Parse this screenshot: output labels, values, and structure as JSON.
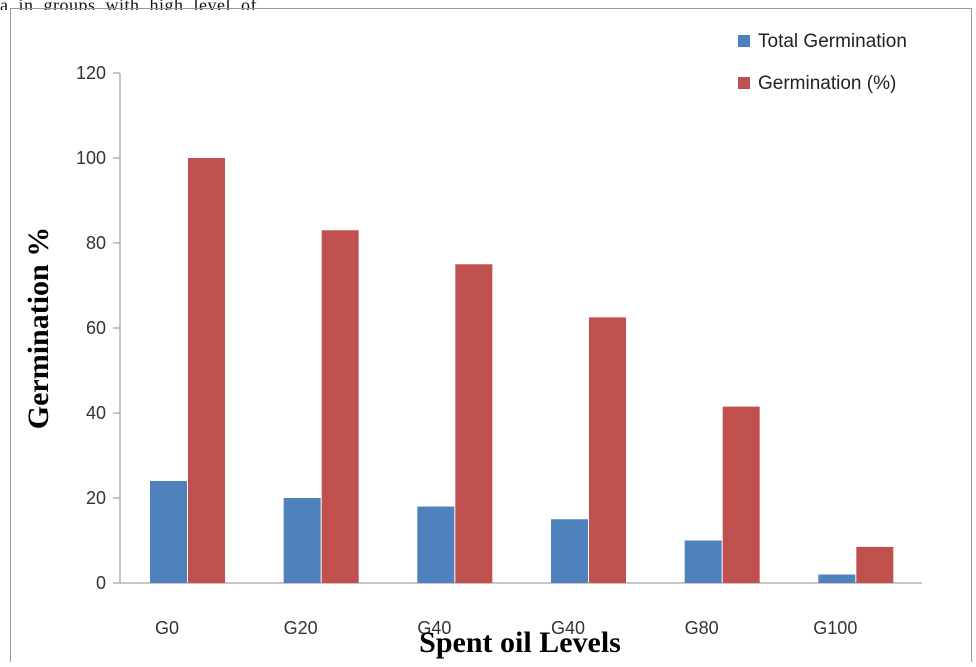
{
  "header_fragment": "a  in  groups  with  high  level  of",
  "chart_data": {
    "type": "bar",
    "title": "",
    "xlabel": "Spent oil Levels",
    "ylabel": "Germination %",
    "categories": [
      "G0",
      "G20",
      "G40",
      "G40",
      "G80",
      "G100"
    ],
    "series": [
      {
        "name": "Total Germination",
        "color": "#4f81bd",
        "values": [
          24,
          20,
          18,
          15,
          10,
          2
        ]
      },
      {
        "name": "Germination (%)",
        "color": "#c0504d",
        "values": [
          100,
          83,
          75,
          62.5,
          41.5,
          8.5
        ]
      }
    ],
    "ylim": [
      0,
      120
    ],
    "yticks": [
      0,
      20,
      40,
      60,
      80,
      100,
      120
    ],
    "grid": false,
    "legend": "top-right"
  }
}
